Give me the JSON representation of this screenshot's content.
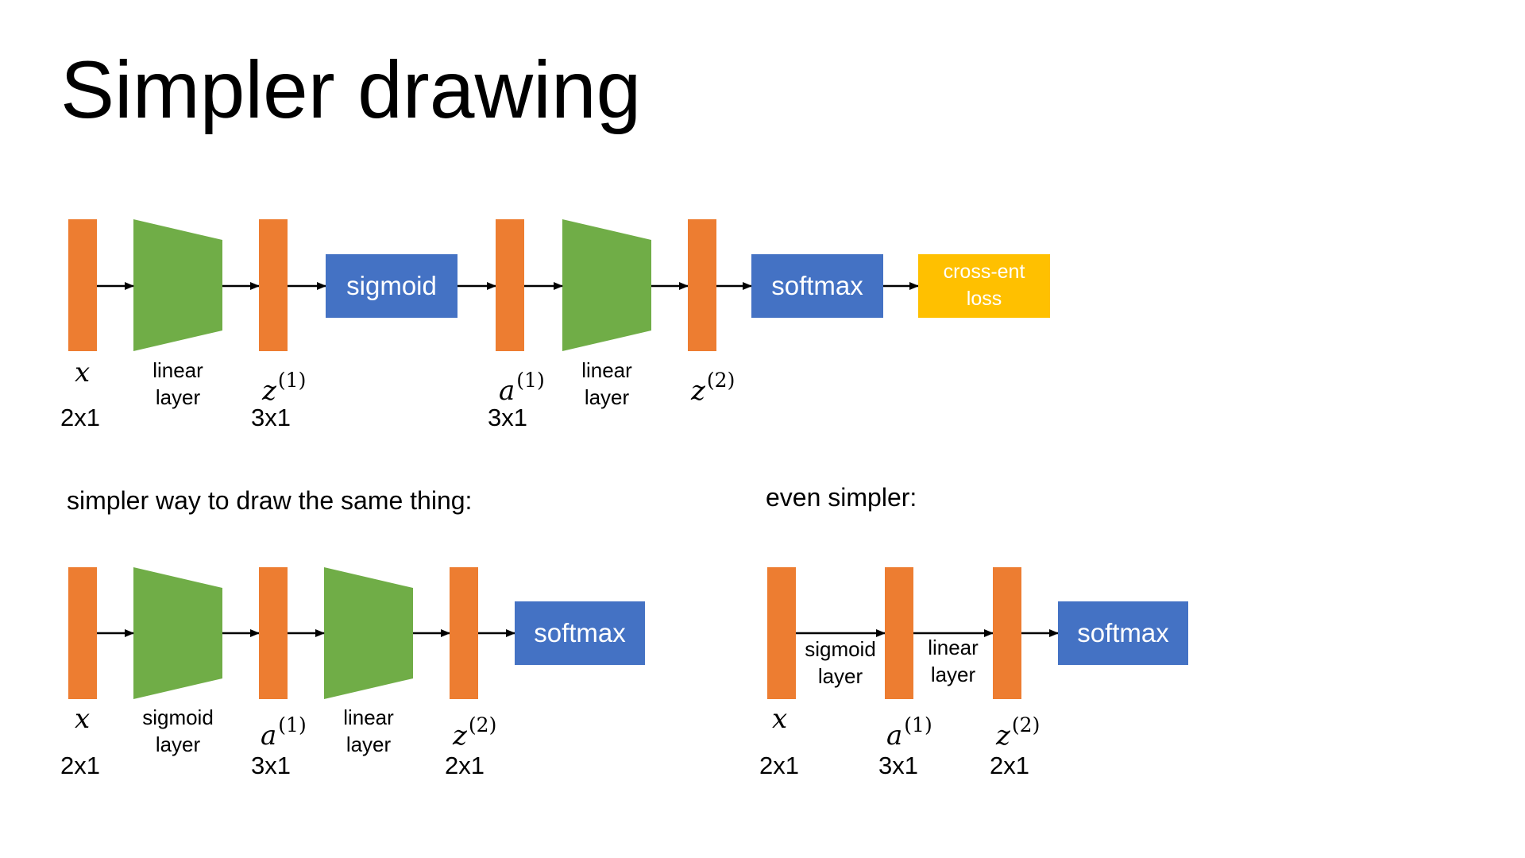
{
  "title": "Simpler drawing",
  "colors": {
    "vector": "#ED7D31",
    "layer": "#70AD47",
    "activation": "#4472C4",
    "loss": "#FFC000"
  },
  "top_diagram": {
    "sigmoid": "sigmoid",
    "softmax": "softmax",
    "loss": "cross-ent\nloss",
    "linear1": "linear\nlayer",
    "linear2": "linear\nlayer",
    "x_sym": "x",
    "x_dim": "2x1",
    "z1_sym": "z",
    "z1_sup": "(1)",
    "z1_dim": "3x1",
    "a1_sym": "a",
    "a1_sup": "(1)",
    "a1_dim": "3x1",
    "z2_sym": "z",
    "z2_sup": "(2)"
  },
  "middle_diagram": {
    "heading": "simpler way to draw the same thing:",
    "softmax": "softmax",
    "sigmoid_layer": "sigmoid\nlayer",
    "linear_layer": "linear\nlayer",
    "x_sym": "x",
    "x_dim": "2x1",
    "a1_sym": "a",
    "a1_sup": "(1)",
    "a1_dim": "3x1",
    "z2_sym": "z",
    "z2_sup": "(2)",
    "z2_dim": "2x1"
  },
  "right_diagram": {
    "heading": "even simpler:",
    "softmax": "softmax",
    "sigmoid_layer": "sigmoid\nlayer",
    "linear_layer": "linear\nlayer",
    "x_sym": "x",
    "x_dim": "2x1",
    "a1_sym": "a",
    "a1_sup": "(1)",
    "a1_dim": "3x1",
    "z2_sym": "z",
    "z2_sup": "(2)",
    "z2_dim": "2x1"
  }
}
